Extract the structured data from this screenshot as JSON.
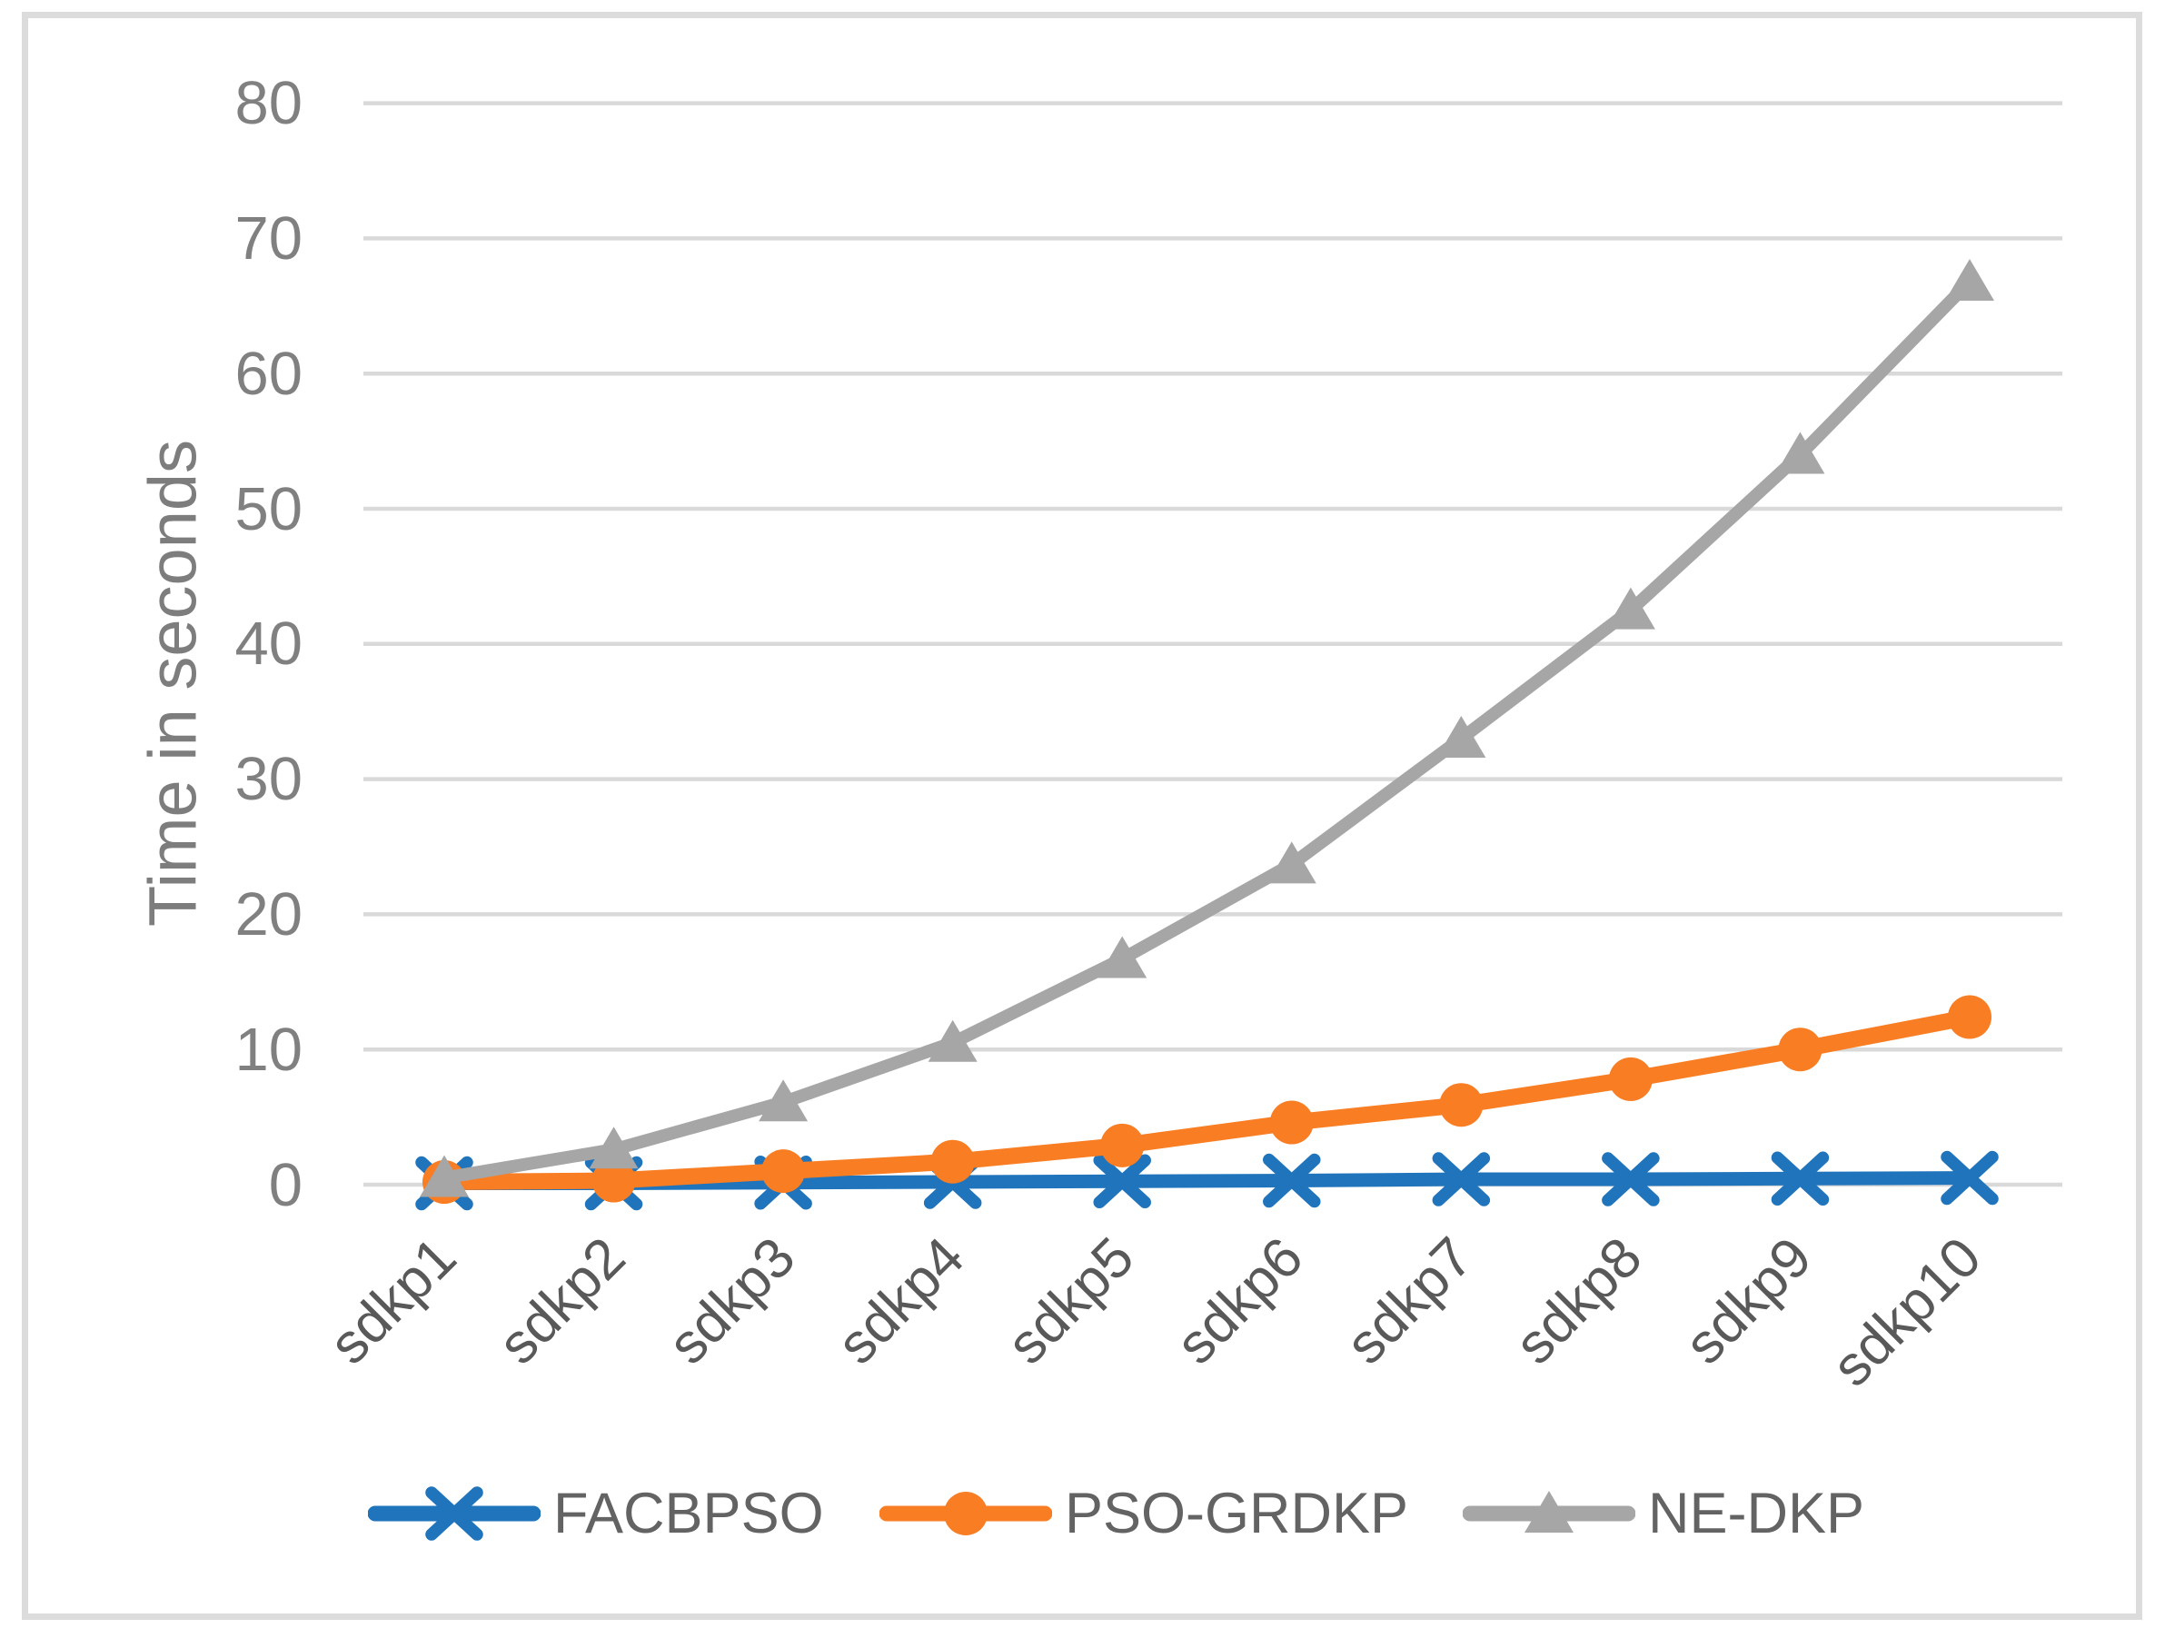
{
  "chart_data": {
    "type": "line",
    "title": "",
    "xlabel": "",
    "ylabel": "Time in seconds",
    "categories": [
      "sdkp1",
      "sdkp2",
      "sdkp3",
      "sdkp4",
      "sdkp5",
      "sdkp6",
      "sdkp7",
      "sdkp8",
      "sdkp9",
      "sdkp10"
    ],
    "ylim": [
      0,
      80
    ],
    "yticks": [
      0,
      10,
      20,
      30,
      40,
      50,
      60,
      70,
      80
    ],
    "grid": "horizontal",
    "legend_position": "bottom",
    "series": [
      {
        "name": "FACBPSO",
        "marker": "x",
        "color": "#1F74BC",
        "values": [
          0.1,
          0.1,
          0.15,
          0.2,
          0.25,
          0.3,
          0.4,
          0.4,
          0.45,
          0.5
        ]
      },
      {
        "name": "PSO-GRDKP",
        "marker": "circle",
        "color": "#F87D23",
        "values": [
          0.2,
          0.3,
          1.0,
          1.7,
          2.9,
          4.6,
          5.9,
          7.8,
          10.0,
          12.4
        ]
      },
      {
        "name": "NE-DKP",
        "marker": "triangle",
        "color": "#A6A6A6",
        "values": [
          0.5,
          2.6,
          6.1,
          10.5,
          16.7,
          23.7,
          33.0,
          42.5,
          54.0,
          66.8
        ]
      }
    ]
  },
  "colors": {
    "gridline": "#D9D9D9",
    "border": "#DCDCDC",
    "tick_text": "#808080",
    "category_text": "#595959",
    "axis_title_text": "#7D7D7D",
    "legend_text": "#636363",
    "background": "#FFFFFF"
  }
}
